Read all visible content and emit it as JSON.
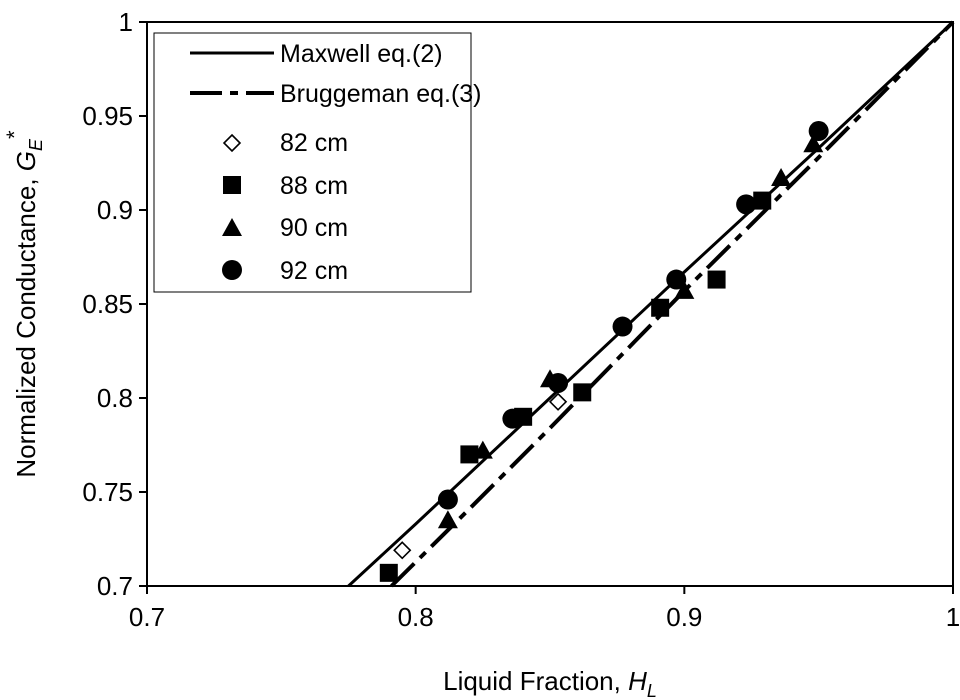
{
  "chart_data": {
    "type": "scatter",
    "xlabel": "Liquid Fraction, ",
    "xlabel_var": "H",
    "xlabel_sub": "L",
    "ylabel": "Normalized Conductance, ",
    "ylabel_var": "G",
    "ylabel_sub": "E",
    "ylabel_sup": "*",
    "xlim": [
      0.7,
      1.0
    ],
    "ylim": [
      0.7,
      1.0
    ],
    "x_ticks": [
      0.7,
      0.8,
      0.9,
      1.0
    ],
    "x_tick_labels": [
      "0.7",
      "0.8",
      "0.9",
      "1"
    ],
    "y_ticks": [
      0.7,
      0.75,
      0.8,
      0.85,
      0.9,
      0.95,
      1.0
    ],
    "y_tick_labels": [
      "0.7",
      "0.75",
      "0.8",
      "0.85",
      "0.9",
      "0.95",
      "1"
    ],
    "grid": false,
    "legend_position": "top-left",
    "lines": [
      {
        "name": "Maxwell eq.(2)",
        "style": "solid",
        "color": "#000000",
        "points": [
          [
            0.775,
            0.7
          ],
          [
            0.8,
            0.733
          ],
          [
            0.85,
            0.8
          ],
          [
            0.9,
            0.867
          ],
          [
            0.95,
            0.933
          ],
          [
            1.0,
            1.0
          ]
        ]
      },
      {
        "name": "Bruggeman eq.(3)",
        "style": "dashdot",
        "color": "#000000",
        "points": [
          [
            0.791,
            0.7
          ],
          [
            0.82,
            0.741
          ],
          [
            0.85,
            0.784
          ],
          [
            0.9,
            0.857
          ],
          [
            0.95,
            0.928
          ],
          [
            1.0,
            1.0
          ]
        ]
      }
    ],
    "series": [
      {
        "name": "82 cm",
        "marker": "diamond-open",
        "x": [
          0.795,
          0.853
        ],
        "y": [
          0.719,
          0.798
        ]
      },
      {
        "name": "88 cm",
        "marker": "square",
        "x": [
          0.79,
          0.82,
          0.84,
          0.862,
          0.891,
          0.912,
          0.929
        ],
        "y": [
          0.707,
          0.77,
          0.79,
          0.803,
          0.848,
          0.863,
          0.905
        ]
      },
      {
        "name": "90 cm",
        "marker": "triangle",
        "x": [
          0.812,
          0.825,
          0.85,
          0.9,
          0.936,
          0.948
        ],
        "y": [
          0.735,
          0.772,
          0.81,
          0.857,
          0.917,
          0.935
        ]
      },
      {
        "name": "92 cm",
        "marker": "circle",
        "x": [
          0.812,
          0.836,
          0.853,
          0.877,
          0.897,
          0.923,
          0.95
        ],
        "y": [
          0.746,
          0.789,
          0.808,
          0.838,
          0.863,
          0.903,
          0.942
        ]
      }
    ]
  }
}
